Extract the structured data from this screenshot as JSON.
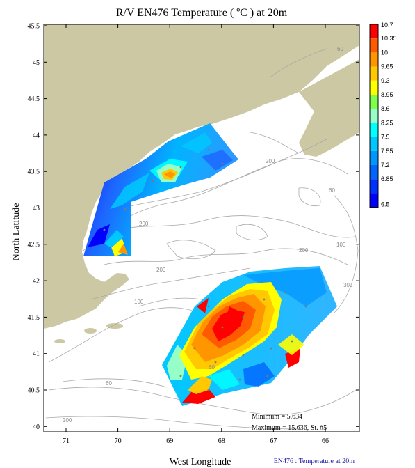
{
  "title": "R/V EN476 Temperature ( ºC ) at 20m",
  "xlabel": "West Longitude",
  "ylabel": "North Latitude",
  "x_ticks": [
    "71",
    "70",
    "69",
    "68",
    "67",
    "66"
  ],
  "y_ticks": [
    "45.5",
    "45",
    "44.5",
    "44",
    "43.5",
    "43",
    "42.5",
    "42",
    "41.5",
    "41",
    "40.5",
    "40"
  ],
  "colorbar": {
    "levels": [
      "10.7",
      "10.35",
      "10",
      "9.65",
      "9.3",
      "8.95",
      "8.6",
      "8.25",
      "7.9",
      "7.55",
      "7.2",
      "6.85",
      "6.5"
    ],
    "colors": [
      "#ff0000",
      "#ff5a00",
      "#ff9600",
      "#ffc800",
      "#ffff00",
      "#7dff4b",
      "#96ffc8",
      "#00ffff",
      "#00c8ff",
      "#0096ff",
      "#0064ff",
      "#0032ff",
      "#0000ff"
    ]
  },
  "depth_labels": [
    "60",
    "200",
    "60",
    "200",
    "200",
    "100",
    "300",
    "60",
    "60",
    "200",
    "100",
    "200"
  ],
  "stats": {
    "minimum": "Minimum = 5.634",
    "maximum": "Maximum = 15.636, St. #5"
  },
  "credit": "EN476 : Temperature at 20m",
  "colors": {
    "land": "#cbc8a3",
    "contour": "#a8a8a8",
    "frame": "#000000"
  }
}
